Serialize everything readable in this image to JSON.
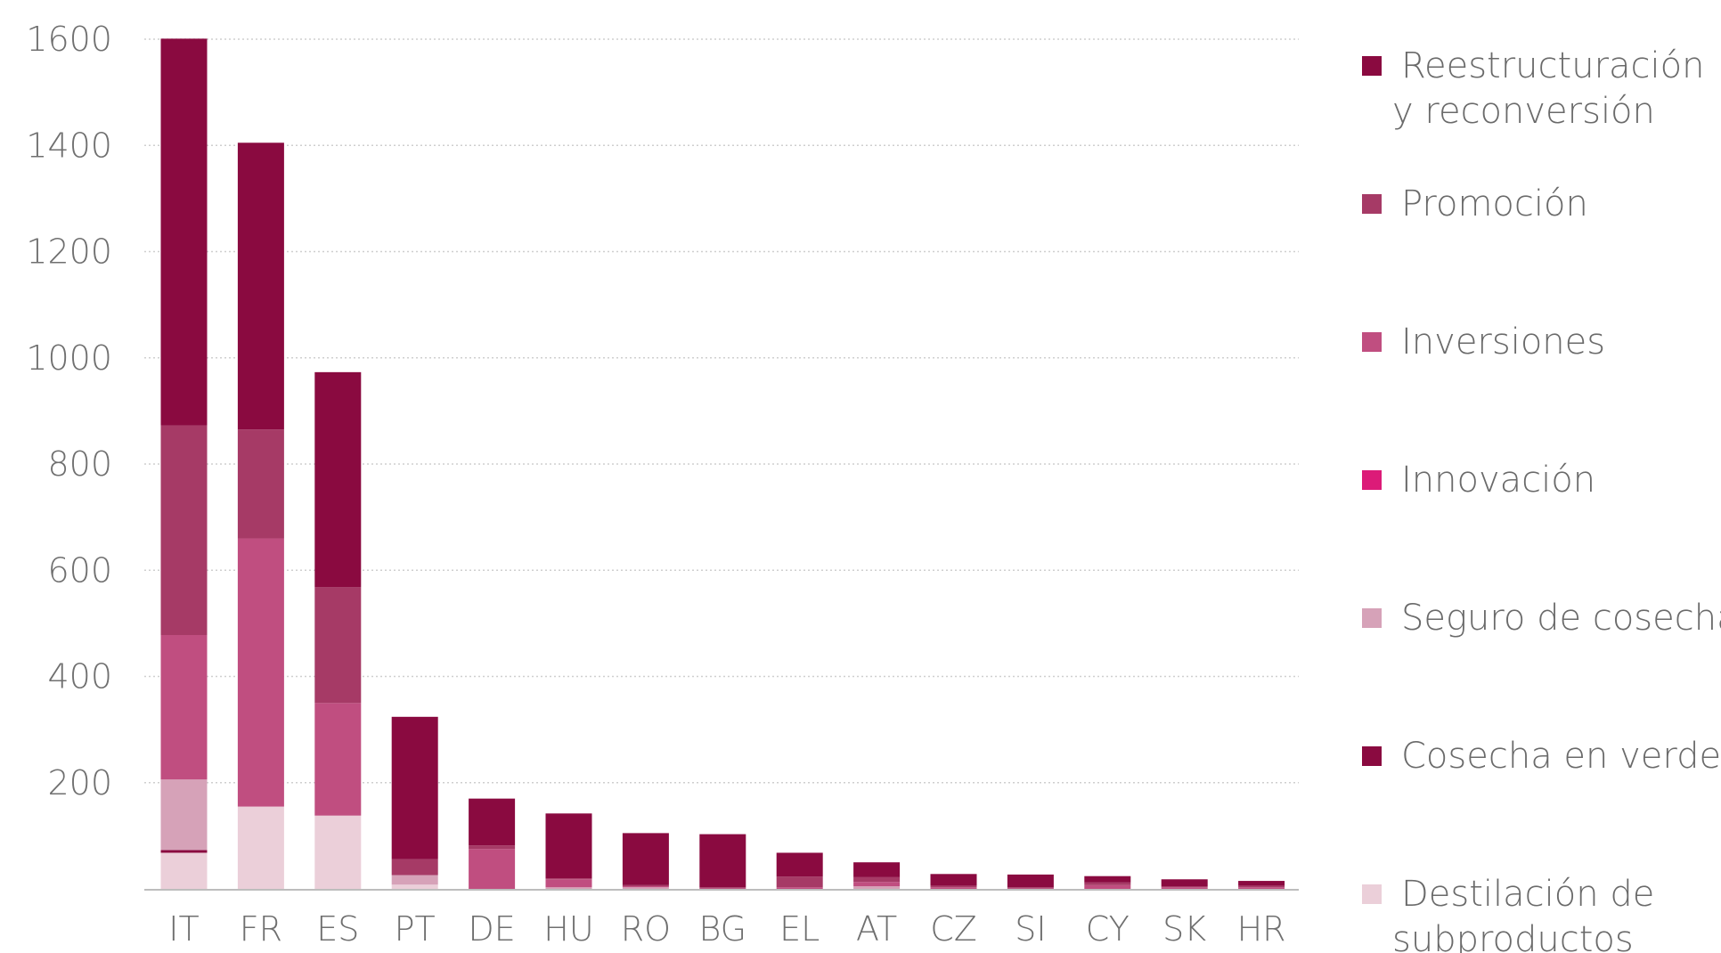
{
  "chart_data": {
    "type": "bar",
    "stacked": true,
    "title": "",
    "xlabel": "",
    "ylabel": "",
    "ylim": [
      0,
      1600
    ],
    "yticks": [
      200,
      400,
      600,
      800,
      1000,
      1200,
      1400,
      1600
    ],
    "grid": true,
    "legend_position": "right",
    "categories": [
      "IT",
      "FR",
      "ES",
      "PT",
      "DE",
      "HU",
      "RO",
      "BG",
      "EL",
      "AT",
      "CZ",
      "SI",
      "CY",
      "SK",
      "HR"
    ],
    "series": [
      {
        "name": "Destilación de subproductos",
        "color": "#ebcfd9",
        "values": [
          68,
          155,
          138,
          8,
          0,
          0,
          0,
          0,
          0,
          0,
          0,
          0,
          0,
          0,
          0
        ]
      },
      {
        "name": "Cosecha en verde",
        "color": "#8a0a40",
        "values": [
          5,
          0,
          0,
          0,
          0,
          0,
          0,
          0,
          0,
          0,
          0,
          0,
          0,
          0,
          0
        ]
      },
      {
        "name": "Seguro de cosecha",
        "color": "#d6a2b8",
        "values": [
          133,
          0,
          0,
          18,
          0,
          3,
          3,
          0,
          0,
          5,
          0,
          0,
          0,
          0,
          0
        ]
      },
      {
        "name": "Innovación",
        "color": "#dc1b78",
        "values": [
          0,
          0,
          0,
          0,
          0,
          0,
          0,
          0,
          0,
          0,
          0,
          0,
          0,
          0,
          0
        ]
      },
      {
        "name": "Inversiones",
        "color": "#c04e80",
        "values": [
          272,
          505,
          212,
          0,
          75,
          15,
          2,
          1,
          3,
          8,
          3,
          1,
          7,
          3,
          3
        ]
      },
      {
        "name": "Promoción",
        "color": "#a63a66",
        "values": [
          395,
          205,
          218,
          30,
          7,
          2,
          2,
          2,
          20,
          9,
          3,
          2,
          5,
          2,
          3
        ]
      },
      {
        "name": "Reestructuración y reconversión",
        "color": "#8a0a40",
        "values": [
          728,
          540,
          405,
          268,
          88,
          122,
          98,
          100,
          45,
          28,
          22,
          24,
          12,
          13,
          9
        ]
      }
    ]
  },
  "legend": [
    {
      "lines": [
        "Reestructuración",
        "y reconversión"
      ],
      "color": "#8a0a40"
    },
    {
      "lines": [
        "Promoción"
      ],
      "color": "#a63a66"
    },
    {
      "lines": [
        "Inversiones"
      ],
      "color": "#c04e80"
    },
    {
      "lines": [
        "Innovación"
      ],
      "color": "#dc1b78"
    },
    {
      "lines": [
        "Seguro de cosecha"
      ],
      "color": "#d6a2b8"
    },
    {
      "lines": [
        "Cosecha en verde"
      ],
      "color": "#8a0a40"
    },
    {
      "lines": [
        "Destilación de",
        "subproductos"
      ],
      "color": "#ebcfd9"
    }
  ]
}
